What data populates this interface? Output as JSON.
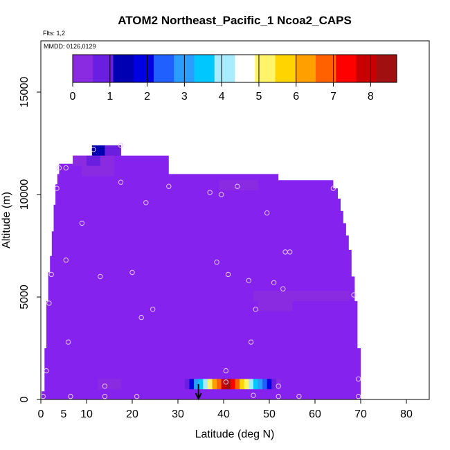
{
  "chart_data": {
    "type": "heatmap",
    "title": "ATOM2 Northeast_Pacific_1 Ncoa2_CAPS",
    "flights_label": "Flts: 1,2",
    "mmdd_label": "MMDD: 0126,0129",
    "xlabel": "Latitude (deg N)",
    "ylabel": "Altitude (m)",
    "xlim": [
      0,
      85
    ],
    "ylim": [
      0,
      17500
    ],
    "x_ticks": [
      0,
      5,
      10,
      20,
      30,
      40,
      50,
      60,
      70,
      80
    ],
    "x_tick_labels": [
      "0",
      "5",
      "10",
      "20",
      "30",
      "40",
      "50",
      "60",
      "70",
      "80"
    ],
    "x_minor_ticks": [
      0,
      10,
      20,
      30,
      40,
      50,
      60,
      70,
      80
    ],
    "y_ticks": [
      0,
      5000,
      10000,
      15000
    ],
    "y_tick_labels": [
      "0",
      "5000",
      "10000",
      "15000"
    ],
    "colorbar": {
      "min": 0,
      "max": 8.7,
      "ticks": [
        0,
        1,
        2,
        3,
        4,
        5,
        6,
        7,
        8
      ],
      "tick_labels": [
        "0",
        "1",
        "2",
        "3",
        "4",
        "5",
        "6",
        "7",
        "8"
      ],
      "colors": [
        "#8a2be2",
        "#6a1ee0",
        "#0000b0",
        "#0000e0",
        "#2060ff",
        "#2a9dff",
        "#00c8ff",
        "#a8ecff",
        "#ffffff",
        "#fff46a",
        "#ffd400",
        "#ffa000",
        "#ff6000",
        "#ff0000",
        "#c80000",
        "#a01010"
      ]
    },
    "background_value": 0,
    "background_color": "#8522ee",
    "envelope": [
      [
        0.2,
        0
      ],
      [
        0.2,
        400
      ],
      [
        0.8,
        400
      ],
      [
        0.8,
        2500
      ],
      [
        1.2,
        2500
      ],
      [
        1.2,
        4800
      ],
      [
        1.6,
        4800
      ],
      [
        1.6,
        6200
      ],
      [
        2.0,
        6200
      ],
      [
        2.0,
        7000
      ],
      [
        2.4,
        7000
      ],
      [
        2.4,
        8200
      ],
      [
        2.8,
        8200
      ],
      [
        2.8,
        9500
      ],
      [
        3.2,
        9500
      ],
      [
        3.2,
        10500
      ],
      [
        3.6,
        10500
      ],
      [
        3.6,
        11000
      ],
      [
        4.0,
        11000
      ],
      [
        4.0,
        11500
      ],
      [
        7.0,
        11500
      ],
      [
        7.0,
        11900
      ],
      [
        11.2,
        11900
      ],
      [
        11.2,
        12400
      ],
      [
        17.5,
        12400
      ],
      [
        17.5,
        11900
      ],
      [
        28.0,
        11900
      ],
      [
        28.0,
        11000
      ],
      [
        52.0,
        11000
      ],
      [
        52.0,
        10700
      ],
      [
        64.0,
        10700
      ],
      [
        64.0,
        10300
      ],
      [
        65.0,
        10300
      ],
      [
        65.0,
        9800
      ],
      [
        65.6,
        9800
      ],
      [
        65.6,
        9200
      ],
      [
        66.2,
        9200
      ],
      [
        66.2,
        8600
      ],
      [
        66.8,
        8600
      ],
      [
        66.8,
        8000
      ],
      [
        67.4,
        8000
      ],
      [
        67.4,
        7300
      ],
      [
        68.0,
        7300
      ],
      [
        68.0,
        6000
      ],
      [
        68.7,
        6000
      ],
      [
        68.7,
        4800
      ],
      [
        69.3,
        4800
      ],
      [
        69.3,
        2500
      ],
      [
        70.0,
        2500
      ],
      [
        70.0,
        0
      ]
    ],
    "cells": [
      {
        "x0": 11.2,
        "x1": 14.0,
        "y0": 11900,
        "y1": 12400,
        "v": 1.2
      },
      {
        "x0": 14.0,
        "x1": 17.5,
        "y0": 11900,
        "y1": 12400,
        "v": 0.6
      },
      {
        "x0": 7.0,
        "x1": 10.0,
        "y0": 11400,
        "y1": 11900,
        "v": 0.5
      },
      {
        "x0": 10.0,
        "x1": 13.0,
        "y0": 11400,
        "y1": 11900,
        "v": 0.8
      },
      {
        "x0": 13.0,
        "x1": 16.0,
        "y0": 11400,
        "y1": 11900,
        "v": 0.5
      },
      {
        "x0": 9.0,
        "x1": 16.0,
        "y0": 10900,
        "y1": 11400,
        "v": 0.35
      },
      {
        "x0": 39.0,
        "x1": 47.5,
        "y0": 10200,
        "y1": 10700,
        "v": 0.3
      },
      {
        "x0": 46.5,
        "x1": 51.0,
        "y0": 4800,
        "y1": 5300,
        "v": 0.3
      },
      {
        "x0": 51.0,
        "x1": 56.0,
        "y0": 4800,
        "y1": 5300,
        "v": 0.5
      },
      {
        "x0": 56.0,
        "x1": 62.0,
        "y0": 4800,
        "y1": 5300,
        "v": 0.4
      },
      {
        "x0": 62.0,
        "x1": 67.5,
        "y0": 4800,
        "y1": 5300,
        "v": 0.3
      },
      {
        "x0": 47.5,
        "x1": 55.0,
        "y0": 4300,
        "y1": 4800,
        "v": 0.25
      },
      {
        "x0": 12.5,
        "x1": 17.5,
        "y0": 500,
        "y1": 1000,
        "v": 0.25
      },
      {
        "x0": 31.5,
        "x1": 32.5,
        "y0": 500,
        "y1": 1000,
        "v": 1.0
      },
      {
        "x0": 32.5,
        "x1": 33.5,
        "y0": 500,
        "y1": 1000,
        "v": 2.0
      },
      {
        "x0": 33.5,
        "x1": 34.5,
        "y0": 500,
        "y1": 1000,
        "v": 3.0
      },
      {
        "x0": 34.5,
        "x1": 35.5,
        "y0": 500,
        "y1": 1000,
        "v": 3.5
      },
      {
        "x0": 35.5,
        "x1": 36.5,
        "y0": 500,
        "y1": 1000,
        "v": 4.2
      },
      {
        "x0": 36.5,
        "x1": 37.5,
        "y0": 500,
        "y1": 1000,
        "v": 5.2
      },
      {
        "x0": 37.5,
        "x1": 38.5,
        "y0": 500,
        "y1": 1000,
        "v": 6.0
      },
      {
        "x0": 38.5,
        "x1": 39.5,
        "y0": 500,
        "y1": 1000,
        "v": 7.0
      },
      {
        "x0": 39.5,
        "x1": 40.5,
        "y0": 500,
        "y1": 1000,
        "v": 7.8
      },
      {
        "x0": 40.5,
        "x1": 41.5,
        "y0": 500,
        "y1": 1000,
        "v": 8.3
      },
      {
        "x0": 41.5,
        "x1": 42.5,
        "y0": 500,
        "y1": 1000,
        "v": 7.6
      },
      {
        "x0": 42.5,
        "x1": 43.5,
        "y0": 500,
        "y1": 1000,
        "v": 6.8
      },
      {
        "x0": 43.5,
        "x1": 44.5,
        "y0": 500,
        "y1": 1000,
        "v": 5.8
      },
      {
        "x0": 44.5,
        "x1": 45.5,
        "y0": 500,
        "y1": 1000,
        "v": 5.0
      },
      {
        "x0": 45.5,
        "x1": 46.5,
        "y0": 500,
        "y1": 1000,
        "v": 4.3
      },
      {
        "x0": 46.5,
        "x1": 47.5,
        "y0": 500,
        "y1": 1000,
        "v": 3.8
      },
      {
        "x0": 47.5,
        "x1": 48.5,
        "y0": 500,
        "y1": 1000,
        "v": 3.2
      },
      {
        "x0": 48.5,
        "x1": 49.5,
        "y0": 500,
        "y1": 1000,
        "v": 2.5
      },
      {
        "x0": 49.5,
        "x1": 50.5,
        "y0": 500,
        "y1": 1000,
        "v": 1.8
      },
      {
        "x0": 50.5,
        "x1": 51.5,
        "y0": 500,
        "y1": 1000,
        "v": 1.0
      },
      {
        "x0": 51.5,
        "x1": 52.5,
        "y0": 500,
        "y1": 1000,
        "v": 0.5
      }
    ],
    "samples": [
      [
        0.5,
        150
      ],
      [
        1.2,
        1400
      ],
      [
        1.8,
        4700
      ],
      [
        2.3,
        6100
      ],
      [
        3.5,
        10300
      ],
      [
        4.0,
        11300
      ],
      [
        5.5,
        11300
      ],
      [
        5.5,
        6800
      ],
      [
        6.0,
        2800
      ],
      [
        6.5,
        150
      ],
      [
        9.0,
        8600
      ],
      [
        11.5,
        12200
      ],
      [
        13.0,
        6000
      ],
      [
        14.0,
        650
      ],
      [
        14.0,
        150
      ],
      [
        17.5,
        10600
      ],
      [
        17.5,
        12400
      ],
      [
        20.0,
        6200
      ],
      [
        21.0,
        150
      ],
      [
        22.0,
        4000
      ],
      [
        23.0,
        9600
      ],
      [
        24.5,
        4400
      ],
      [
        28.0,
        10400
      ],
      [
        37.0,
        10100
      ],
      [
        38.5,
        6700
      ],
      [
        39.5,
        10000
      ],
      [
        40.5,
        1400
      ],
      [
        40.5,
        850
      ],
      [
        41.0,
        6100
      ],
      [
        43.0,
        10400
      ],
      [
        45.5,
        5800
      ],
      [
        46.0,
        2800
      ],
      [
        46.5,
        200
      ],
      [
        47.0,
        4400
      ],
      [
        49.5,
        9100
      ],
      [
        51.0,
        5700
      ],
      [
        52.0,
        650
      ],
      [
        52.0,
        150
      ],
      [
        53.0,
        5400
      ],
      [
        53.5,
        7200
      ],
      [
        54.5,
        7200
      ],
      [
        56.5,
        150
      ],
      [
        64.0,
        10300
      ],
      [
        68.5,
        5100
      ],
      [
        69.5,
        1000
      ],
      [
        69.5,
        150
      ]
    ],
    "arrow_latitude": 34.5
  }
}
